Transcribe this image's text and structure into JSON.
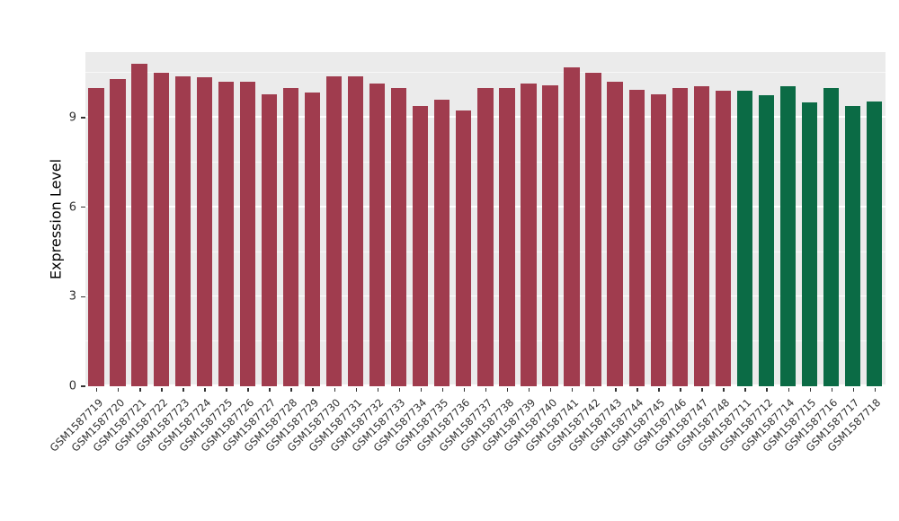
{
  "chart_data": {
    "type": "bar",
    "title": "",
    "xlabel": "",
    "ylabel": "Expression Level",
    "ylim": [
      0,
      11.2
    ],
    "y_ticks": [
      0,
      3,
      6,
      9
    ],
    "y_minor_ticks": [
      1.5,
      4.5,
      7.5,
      10.5
    ],
    "grid": true,
    "legend_position": "none",
    "plot_background": "#EBEBEB",
    "categories": [
      "GSM1587719",
      "GSM1587720",
      "GSM1587721",
      "GSM1587722",
      "GSM1587723",
      "GSM1587724",
      "GSM1587725",
      "GSM1587726",
      "GSM1587727",
      "GSM1587728",
      "GSM1587729",
      "GSM1587730",
      "GSM1587731",
      "GSM1587732",
      "GSM1587733",
      "GSM1587734",
      "GSM1587735",
      "GSM1587736",
      "GSM1587737",
      "GSM1587738",
      "GSM1587739",
      "GSM1587740",
      "GSM1587741",
      "GSM1587742",
      "GSM1587743",
      "GSM1587744",
      "GSM1587745",
      "GSM1587746",
      "GSM1587747",
      "GSM1587748",
      "GSM1587711",
      "GSM1587712",
      "GSM1587714",
      "GSM1587715",
      "GSM1587716",
      "GSM1587717",
      "GSM1587718"
    ],
    "values": [
      10.0,
      10.3,
      10.8,
      10.5,
      10.4,
      10.35,
      10.2,
      10.2,
      9.8,
      10.0,
      9.85,
      10.4,
      10.4,
      10.15,
      10.0,
      9.4,
      9.6,
      9.25,
      10.0,
      10.0,
      10.15,
      10.1,
      10.7,
      10.5,
      10.2,
      9.95,
      9.8,
      10.0,
      10.05,
      9.9,
      9.9,
      9.75,
      10.05,
      9.5,
      10.0,
      9.4,
      9.55
    ],
    "groups": [
      "group1",
      "group1",
      "group1",
      "group1",
      "group1",
      "group1",
      "group1",
      "group1",
      "group1",
      "group1",
      "group1",
      "group1",
      "group1",
      "group1",
      "group1",
      "group1",
      "group1",
      "group1",
      "group1",
      "group1",
      "group1",
      "group1",
      "group1",
      "group1",
      "group1",
      "group1",
      "group1",
      "group1",
      "group1",
      "group1",
      "group2",
      "group2",
      "group2",
      "group2",
      "group2",
      "group2",
      "group2"
    ],
    "group_colors": {
      "group1": "#A03C4E",
      "group2": "#0B6B45"
    }
  }
}
